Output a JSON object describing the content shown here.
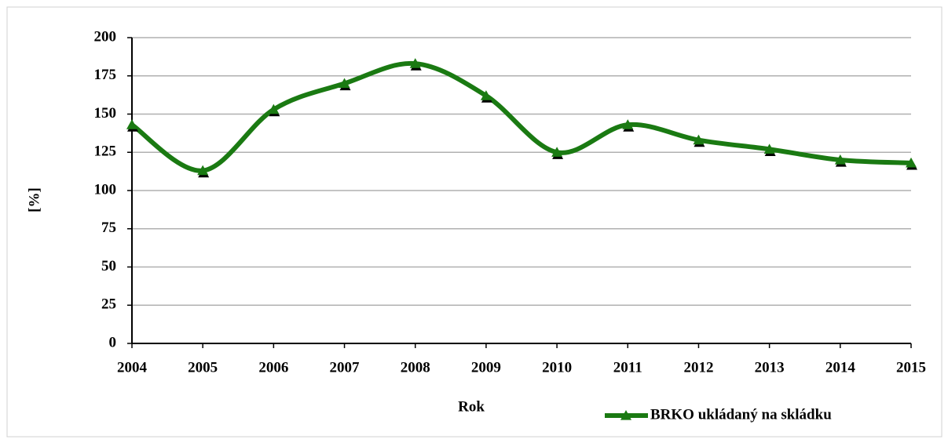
{
  "chart_data": {
    "type": "line",
    "categories": [
      "2004",
      "2005",
      "2006",
      "2007",
      "2008",
      "2009",
      "2010",
      "2011",
      "2012",
      "2013",
      "2014",
      "2015"
    ],
    "series": [
      {
        "name": "BRKO ukládaný na skládku",
        "color": "#1a7a12",
        "values": [
          143,
          113,
          153,
          170,
          183,
          162,
          125,
          143,
          133,
          127,
          120,
          118
        ]
      }
    ],
    "xlabel": "Rok",
    "ylabel": "[%]",
    "ylim": [
      0,
      200
    ],
    "yticks": [
      0,
      25,
      50,
      75,
      100,
      125,
      150,
      175,
      200
    ],
    "grid": true,
    "legend": "bottom-right",
    "smooth": true
  }
}
